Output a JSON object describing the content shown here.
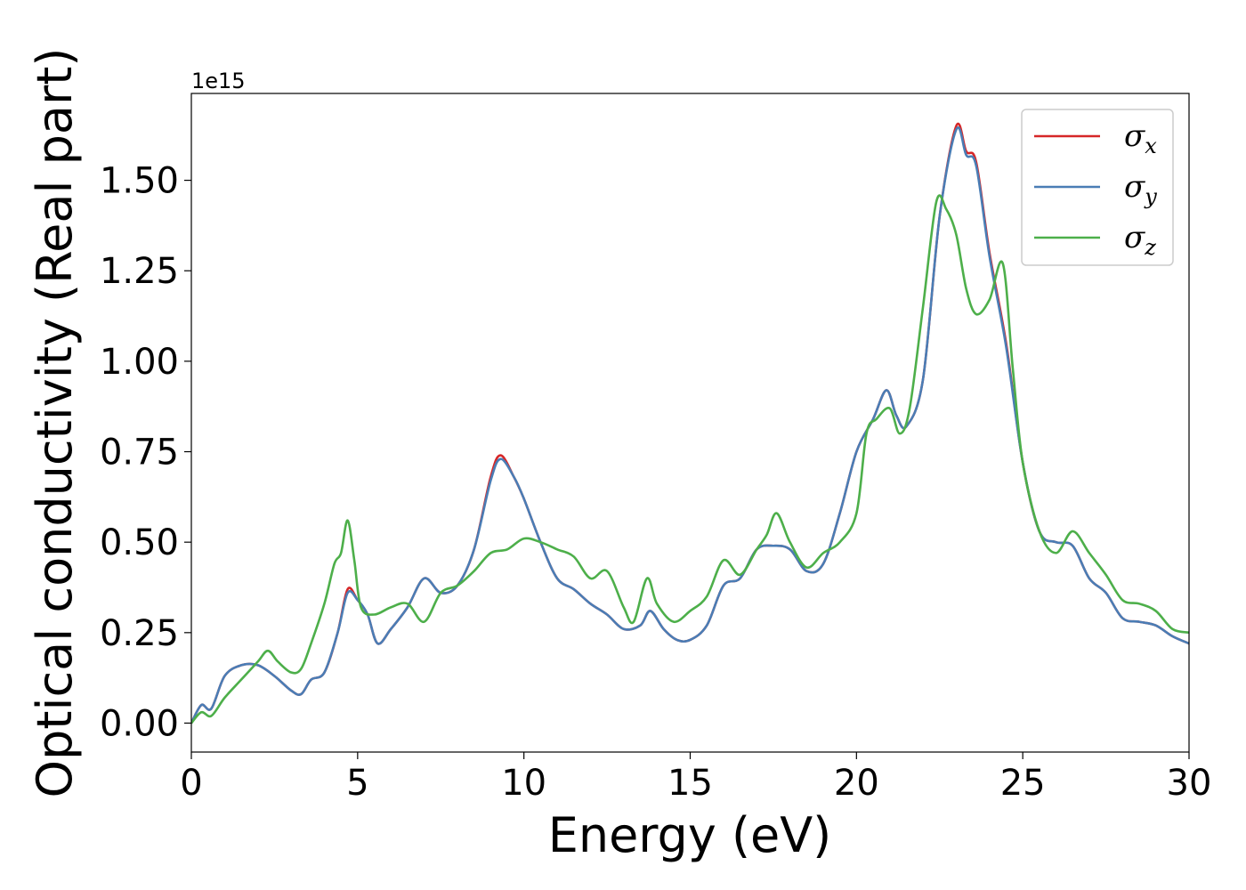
{
  "chart_data": {
    "type": "line",
    "title": "",
    "xlabel": "Energy (eV)",
    "ylabel": "Optical conductivity (Real part)",
    "y_offset_text": "1e15",
    "xlim": [
      0,
      30
    ],
    "ylim": [
      -0.08,
      1.74
    ],
    "y_scale_factor": "1e15",
    "x_ticks": [
      0,
      5,
      10,
      15,
      20,
      25,
      30
    ],
    "x_tick_labels": [
      "0",
      "5",
      "10",
      "15",
      "20",
      "25",
      "30"
    ],
    "y_ticks": [
      0.0,
      0.25,
      0.5,
      0.75,
      1.0,
      1.25,
      1.5
    ],
    "y_tick_labels": [
      "0.00",
      "0.25",
      "0.50",
      "0.75",
      "1.00",
      "1.25",
      "1.50"
    ],
    "grid": false,
    "legend_position": "top-right",
    "series": [
      {
        "name": "σx",
        "symbol": "σ",
        "subscript": "x",
        "color": "#d62728",
        "x": [
          0,
          0.3,
          0.6,
          1.0,
          1.5,
          2.0,
          2.5,
          3.0,
          3.3,
          3.6,
          4.0,
          4.4,
          4.7,
          5.0,
          5.3,
          5.6,
          6.0,
          6.5,
          7.0,
          7.5,
          8.0,
          8.5,
          9.0,
          9.3,
          9.7,
          10.0,
          10.5,
          11.0,
          11.5,
          12.0,
          12.5,
          13.0,
          13.5,
          13.8,
          14.2,
          14.6,
          15.0,
          15.5,
          16.0,
          16.5,
          17.0,
          17.5,
          18.0,
          18.5,
          19.0,
          19.5,
          20.0,
          20.5,
          20.9,
          21.2,
          21.5,
          22.0,
          22.5,
          23.0,
          23.3,
          23.6,
          24.0,
          24.5,
          25.0,
          25.5,
          26.0,
          26.5,
          27.0,
          27.5,
          28.0,
          28.5,
          29.0,
          29.5,
          30.0
        ],
        "y": [
          0.0,
          0.05,
          0.04,
          0.13,
          0.16,
          0.16,
          0.13,
          0.09,
          0.08,
          0.12,
          0.14,
          0.25,
          0.37,
          0.34,
          0.3,
          0.22,
          0.26,
          0.32,
          0.4,
          0.36,
          0.38,
          0.48,
          0.68,
          0.74,
          0.68,
          0.62,
          0.5,
          0.4,
          0.37,
          0.33,
          0.3,
          0.26,
          0.27,
          0.31,
          0.26,
          0.23,
          0.23,
          0.27,
          0.38,
          0.4,
          0.48,
          0.49,
          0.48,
          0.42,
          0.44,
          0.58,
          0.75,
          0.84,
          0.92,
          0.85,
          0.82,
          0.95,
          1.4,
          1.65,
          1.58,
          1.55,
          1.3,
          1.05,
          0.72,
          0.53,
          0.5,
          0.49,
          0.4,
          0.36,
          0.29,
          0.28,
          0.27,
          0.24,
          0.22
        ]
      },
      {
        "name": "σy",
        "symbol": "σ",
        "subscript": "y",
        "color": "#4a7db5",
        "x": [
          0,
          0.3,
          0.6,
          1.0,
          1.5,
          2.0,
          2.5,
          3.0,
          3.3,
          3.6,
          4.0,
          4.4,
          4.7,
          5.0,
          5.3,
          5.6,
          6.0,
          6.5,
          7.0,
          7.5,
          8.0,
          8.5,
          9.0,
          9.3,
          9.7,
          10.0,
          10.5,
          11.0,
          11.5,
          12.0,
          12.5,
          13.0,
          13.5,
          13.8,
          14.2,
          14.6,
          15.0,
          15.5,
          16.0,
          16.5,
          17.0,
          17.5,
          18.0,
          18.5,
          19.0,
          19.5,
          20.0,
          20.5,
          20.9,
          21.2,
          21.5,
          22.0,
          22.5,
          23.0,
          23.3,
          23.6,
          24.0,
          24.5,
          25.0,
          25.5,
          26.0,
          26.5,
          27.0,
          27.5,
          28.0,
          28.5,
          29.0,
          29.5,
          30.0
        ],
        "y": [
          0.0,
          0.05,
          0.04,
          0.13,
          0.16,
          0.16,
          0.13,
          0.09,
          0.08,
          0.12,
          0.14,
          0.25,
          0.36,
          0.34,
          0.3,
          0.22,
          0.26,
          0.32,
          0.4,
          0.36,
          0.38,
          0.48,
          0.67,
          0.73,
          0.68,
          0.62,
          0.5,
          0.4,
          0.37,
          0.33,
          0.3,
          0.26,
          0.27,
          0.31,
          0.26,
          0.23,
          0.23,
          0.27,
          0.38,
          0.4,
          0.48,
          0.49,
          0.48,
          0.42,
          0.44,
          0.58,
          0.75,
          0.84,
          0.92,
          0.85,
          0.82,
          0.95,
          1.4,
          1.64,
          1.57,
          1.54,
          1.29,
          1.04,
          0.72,
          0.53,
          0.5,
          0.49,
          0.4,
          0.36,
          0.29,
          0.28,
          0.27,
          0.24,
          0.22
        ]
      },
      {
        "name": "σz",
        "symbol": "σ",
        "subscript": "z",
        "color": "#4daf4a",
        "x": [
          0,
          0.3,
          0.6,
          1.0,
          1.5,
          2.0,
          2.3,
          2.6,
          3.0,
          3.3,
          3.6,
          4.0,
          4.3,
          4.5,
          4.7,
          4.9,
          5.1,
          5.5,
          6.0,
          6.5,
          7.0,
          7.5,
          8.0,
          8.5,
          9.0,
          9.5,
          10.0,
          10.5,
          11.0,
          11.5,
          12.0,
          12.5,
          13.0,
          13.3,
          13.7,
          14.0,
          14.5,
          15.0,
          15.5,
          16.0,
          16.5,
          17.0,
          17.3,
          17.6,
          18.0,
          18.5,
          19.0,
          19.5,
          20.0,
          20.3,
          20.6,
          21.0,
          21.3,
          21.6,
          22.0,
          22.4,
          22.7,
          23.0,
          23.3,
          23.6,
          24.0,
          24.4,
          24.7,
          25.0,
          25.5,
          26.0,
          26.5,
          27.0,
          27.5,
          28.0,
          28.5,
          29.0,
          29.5,
          30.0
        ],
        "y": [
          0.0,
          0.03,
          0.02,
          0.07,
          0.12,
          0.17,
          0.2,
          0.17,
          0.14,
          0.15,
          0.22,
          0.33,
          0.44,
          0.47,
          0.56,
          0.45,
          0.32,
          0.3,
          0.32,
          0.33,
          0.28,
          0.36,
          0.38,
          0.42,
          0.47,
          0.48,
          0.51,
          0.5,
          0.48,
          0.46,
          0.4,
          0.42,
          0.32,
          0.28,
          0.4,
          0.33,
          0.28,
          0.31,
          0.35,
          0.45,
          0.41,
          0.48,
          0.52,
          0.58,
          0.5,
          0.43,
          0.47,
          0.5,
          0.58,
          0.8,
          0.84,
          0.87,
          0.8,
          0.87,
          1.15,
          1.44,
          1.42,
          1.35,
          1.2,
          1.13,
          1.17,
          1.27,
          0.98,
          0.72,
          0.53,
          0.47,
          0.53,
          0.47,
          0.41,
          0.34,
          0.33,
          0.31,
          0.26,
          0.25
        ]
      }
    ]
  }
}
